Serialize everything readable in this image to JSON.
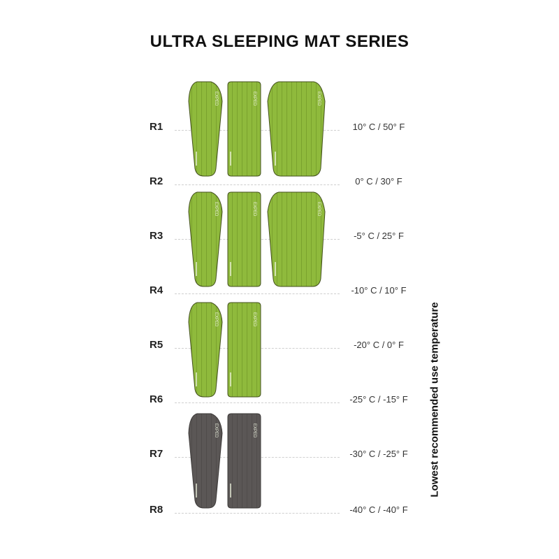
{
  "title": "ULTRA SLEEPING MAT SERIES",
  "axis_label": "Lowest recommended use temperature",
  "rows": [
    {
      "label": "R1",
      "temp": "10° C / 50° F"
    },
    {
      "label": "R2",
      "temp": "0° C / 30° F"
    },
    {
      "label": "R3",
      "temp": "-5° C / 25° F"
    },
    {
      "label": "R4",
      "temp": "-10° C / 10° F"
    },
    {
      "label": "R5",
      "temp": "-20° C / 0° F"
    },
    {
      "label": "R6",
      "temp": "-25° C / -15° F"
    },
    {
      "label": "R7",
      "temp": "-30° C / -25° F"
    },
    {
      "label": "R8",
      "temp": "-40° C / -40° F"
    }
  ],
  "mat_logo": "EXPED",
  "colors": {
    "green_mat": "#8fba3c",
    "gray_mat": "#5b5756",
    "outline": "#44501f"
  },
  "mat_groups": [
    {
      "color": "green",
      "shapes": [
        "mummy",
        "rectangle",
        "wide"
      ]
    },
    {
      "color": "green",
      "shapes": [
        "mummy",
        "rectangle",
        "wide"
      ]
    },
    {
      "color": "green",
      "shapes": [
        "mummy",
        "rectangle"
      ]
    },
    {
      "color": "gray",
      "shapes": [
        "mummy",
        "rectangle"
      ]
    }
  ]
}
